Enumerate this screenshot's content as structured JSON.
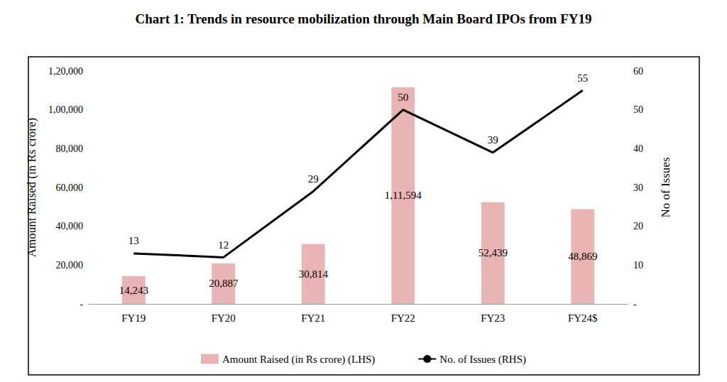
{
  "chart_data": {
    "type": "bar",
    "title": "Chart 1: Trends in resource mobilization through Main Board IPOs from FY19",
    "categories": [
      "FY19",
      "FY20",
      "FY21",
      "FY22",
      "FY23",
      "FY24$"
    ],
    "series": [
      {
        "name": "Amount Raised (in Rs crore) (LHS)",
        "type": "bar",
        "color": "#e8b4b4",
        "values": [
          14243,
          20887,
          30814,
          111594,
          52439,
          48869
        ],
        "value_labels": [
          "14,243",
          "20,887",
          "30,814",
          "1,11,594",
          "52,439",
          "48,869"
        ]
      },
      {
        "name": "No. of Issues (RHS)",
        "type": "line",
        "axis": "y2",
        "color": "#000000",
        "values": [
          13,
          12,
          29,
          50,
          39,
          55
        ]
      }
    ],
    "ylabel": "Amount Raised (in Rs crore)",
    "y2label": "No of Issues",
    "ylim": [
      0,
      120000
    ],
    "yticks": [
      {
        "value": 0,
        "label": "-"
      },
      {
        "value": 20000,
        "label": "20,000"
      },
      {
        "value": 40000,
        "label": "40,000"
      },
      {
        "value": 60000,
        "label": "60,000"
      },
      {
        "value": 80000,
        "label": "80,000"
      },
      {
        "value": 100000,
        "label": "1,00,000"
      },
      {
        "value": 120000,
        "label": "1,20,000"
      }
    ],
    "y2lim": [
      0,
      60
    ],
    "y2ticks": [
      {
        "value": 0,
        "label": "-"
      },
      10,
      20,
      30,
      40,
      50,
      60
    ],
    "data_labels": true,
    "grid": false,
    "legend": "bottom"
  }
}
